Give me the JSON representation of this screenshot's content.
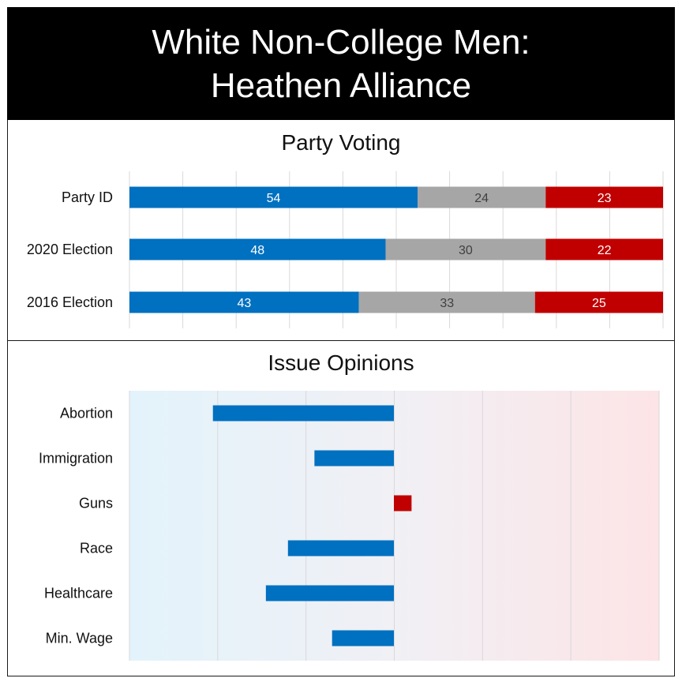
{
  "header": {
    "title_line1": "White Non-College Men:",
    "title_line2": "Heathen Alliance"
  },
  "colors": {
    "democrat": "#0070C0",
    "independent": "#A6A6A6",
    "republican": "#C00000",
    "grid": "#d9d9d9"
  },
  "chart_data": [
    {
      "type": "bar",
      "stacked": true,
      "orientation": "horizontal",
      "title": "Party Voting",
      "categories": [
        "Party ID",
        "2020 Election",
        "2016 Election"
      ],
      "series": [
        {
          "values": [
            54,
            48,
            43
          ],
          "color": "#0070C0"
        },
        {
          "values": [
            24,
            30,
            33
          ],
          "color": "#A6A6A6"
        },
        {
          "values": [
            23,
            22,
            25
          ],
          "color": "#C00000"
        }
      ],
      "xlim": [
        0,
        100
      ],
      "grid": true
    },
    {
      "type": "bar",
      "orientation": "horizontal",
      "diverging": true,
      "title": "Issue Opinions",
      "categories": [
        "Abortion",
        "Immigration",
        "Guns",
        "Race",
        "Healthcare",
        "Min. Wage"
      ],
      "values": [
        -41,
        -18,
        4,
        -24,
        -29,
        -14
      ],
      "xlim": [
        -60,
        60
      ],
      "grid": true,
      "background": "gradient blue-left to red-right"
    }
  ]
}
